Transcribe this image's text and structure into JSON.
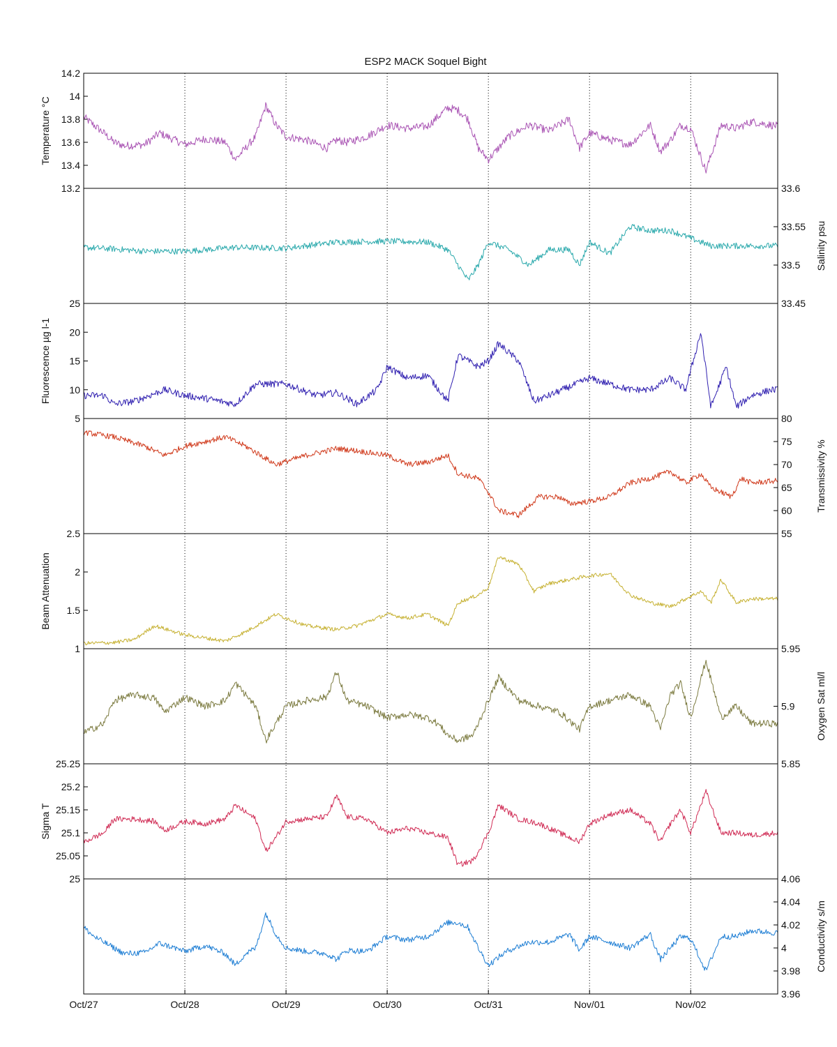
{
  "chart_data": {
    "type": "line",
    "title": "ESP2 MACK  Soquel Bight",
    "x_axis": {
      "unit": "days since Oct/27",
      "range": [
        0,
        6.86
      ],
      "tick_values": [
        0,
        1,
        2,
        3,
        4,
        5,
        6
      ],
      "tick_labels": [
        "Oct/27",
        "Oct/28",
        "Oct/29",
        "Oct/30",
        "Oct/31",
        "Nov/01",
        "Nov/02"
      ],
      "grid": "dotted vertical lines at each day"
    },
    "panels": [
      {
        "id": "temperature",
        "ylabel": "Temperature °C",
        "ylabel_side": "left",
        "color": "#aa55b4",
        "ylim": [
          13.2,
          14.2
        ],
        "ticks": [
          "13.4",
          "13.6",
          "13.8",
          "14"
        ],
        "top_label": "14.2",
        "bottom_label": "13.2",
        "x": [
          0,
          0.1,
          0.2,
          0.3,
          0.4,
          0.6,
          0.75,
          0.9,
          1.0,
          1.2,
          1.4,
          1.5,
          1.6,
          1.7,
          1.8,
          1.9,
          2.0,
          2.2,
          2.4,
          2.5,
          2.6,
          2.8,
          3.0,
          3.2,
          3.4,
          3.6,
          3.7,
          3.8,
          3.9,
          4.0,
          4.1,
          4.2,
          4.4,
          4.6,
          4.8,
          4.9,
          5.0,
          5.2,
          5.4,
          5.6,
          5.7,
          5.8,
          5.9,
          6.0,
          6.15,
          6.3,
          6.45,
          6.6,
          6.86
        ],
        "values": [
          13.82,
          13.75,
          13.68,
          13.6,
          13.57,
          13.58,
          13.68,
          13.62,
          13.58,
          13.63,
          13.6,
          13.45,
          13.55,
          13.65,
          13.92,
          13.75,
          13.65,
          13.62,
          13.55,
          13.62,
          13.6,
          13.65,
          13.75,
          13.72,
          13.74,
          13.9,
          13.88,
          13.8,
          13.55,
          13.45,
          13.55,
          13.65,
          13.75,
          13.7,
          13.8,
          13.55,
          13.68,
          13.62,
          13.58,
          13.75,
          13.52,
          13.62,
          13.75,
          13.72,
          13.35,
          13.75,
          13.72,
          13.78,
          13.74
        ],
        "noise": 0.035
      },
      {
        "id": "salinity",
        "ylabel": "Salinity psu",
        "ylabel_side": "right",
        "color": "#2aa9ac",
        "ylim": [
          33.45,
          33.6
        ],
        "ticks": [
          "33.5",
          "33.55"
        ],
        "top_label": "33.6",
        "bottom_label": "33.45",
        "x": [
          0,
          0.3,
          0.6,
          1.0,
          1.5,
          2.0,
          2.5,
          3.0,
          3.4,
          3.6,
          3.7,
          3.8,
          3.9,
          4.0,
          4.2,
          4.4,
          4.5,
          4.6,
          4.8,
          4.9,
          5.0,
          5.2,
          5.4,
          5.6,
          5.8,
          6.0,
          6.2,
          6.4,
          6.6,
          6.86
        ],
        "values": [
          33.523,
          33.521,
          33.518,
          33.518,
          33.523,
          33.522,
          33.53,
          33.531,
          33.53,
          33.52,
          33.5,
          33.48,
          33.5,
          33.53,
          33.52,
          33.5,
          33.51,
          33.52,
          33.52,
          33.5,
          33.53,
          33.515,
          33.55,
          33.545,
          33.545,
          33.535,
          33.525,
          33.525,
          33.525,
          33.525
        ],
        "noise": 0.004
      },
      {
        "id": "fluorescence",
        "ylabel": "Fluorescence µg l-1",
        "ylabel_side": "left",
        "color": "#3020b0",
        "ylim": [
          5,
          25
        ],
        "ticks": [
          "10",
          "15",
          "20"
        ],
        "top_label": "25",
        "bottom_label": "5",
        "x": [
          0,
          0.2,
          0.3,
          0.5,
          0.8,
          1.0,
          1.2,
          1.5,
          1.7,
          2.0,
          2.3,
          2.5,
          2.7,
          2.9,
          3.0,
          3.2,
          3.4,
          3.6,
          3.7,
          3.9,
          4.0,
          4.1,
          4.3,
          4.45,
          4.6,
          4.8,
          5.0,
          5.2,
          5.4,
          5.6,
          5.8,
          5.95,
          6.1,
          6.2,
          6.35,
          6.45,
          6.6,
          6.8,
          6.86
        ],
        "values": [
          9,
          9,
          7.5,
          8,
          10,
          9,
          8.5,
          7.5,
          11,
          11,
          9,
          9.5,
          7.5,
          10,
          14,
          12,
          12.5,
          8,
          16,
          14,
          15,
          18,
          15,
          8,
          9,
          10.5,
          12,
          11,
          10,
          10,
          12,
          10,
          20,
          7,
          14,
          7,
          9,
          10,
          10
        ],
        "noise": 0.6
      },
      {
        "id": "transmissivity",
        "ylabel": "Transmissivity %",
        "ylabel_side": "right",
        "color": "#d03a1c",
        "ylim": [
          55,
          80
        ],
        "ticks": [
          "60",
          "65",
          "70",
          "75"
        ],
        "top_label": "80",
        "bottom_label": "55",
        "x": [
          0,
          0.3,
          0.6,
          0.8,
          1.0,
          1.4,
          1.6,
          1.9,
          2.2,
          2.5,
          2.7,
          3.0,
          3.2,
          3.4,
          3.6,
          3.7,
          3.9,
          4.0,
          4.1,
          4.3,
          4.5,
          4.7,
          4.8,
          5.0,
          5.2,
          5.4,
          5.6,
          5.8,
          5.95,
          6.1,
          6.2,
          6.3,
          6.4,
          6.5,
          6.6,
          6.86
        ],
        "values": [
          77,
          76,
          74,
          72,
          74,
          76,
          74,
          70,
          72,
          73.5,
          73,
          72,
          70,
          70.5,
          72,
          68,
          67,
          64,
          60,
          59,
          63,
          63,
          61.5,
          62,
          63,
          66,
          67,
          68.5,
          66,
          68,
          65,
          64,
          63,
          67,
          66,
          66.5
        ],
        "noise": 0.6
      },
      {
        "id": "beam_attenuation",
        "ylabel": "Beam Attenuation",
        "ylabel_side": "left",
        "color": "#c6b132",
        "ylim": [
          1,
          2.5
        ],
        "ticks": [
          "1.5",
          "2"
        ],
        "top_label": "2.5",
        "bottom_label": "1",
        "x": [
          0,
          0.3,
          0.5,
          0.7,
          1.0,
          1.4,
          1.6,
          1.9,
          2.2,
          2.5,
          2.7,
          3.0,
          3.2,
          3.4,
          3.6,
          3.7,
          3.9,
          4.0,
          4.1,
          4.3,
          4.45,
          4.6,
          4.8,
          5.0,
          5.2,
          5.4,
          5.6,
          5.8,
          5.95,
          6.1,
          6.2,
          6.3,
          6.45,
          6.6,
          6.86
        ],
        "values": [
          1.07,
          1.08,
          1.12,
          1.3,
          1.18,
          1.1,
          1.22,
          1.45,
          1.3,
          1.25,
          1.3,
          1.45,
          1.4,
          1.45,
          1.3,
          1.6,
          1.7,
          1.8,
          2.2,
          2.1,
          1.75,
          1.85,
          1.9,
          1.95,
          1.98,
          1.7,
          1.6,
          1.55,
          1.65,
          1.75,
          1.6,
          1.9,
          1.6,
          1.65,
          1.65
        ],
        "noise": 0.025
      },
      {
        "id": "oxygen_sat",
        "ylabel": "Oxygen Sat ml/l",
        "ylabel_side": "right",
        "color": "#7c7b40",
        "ylim": [
          5.85,
          5.95
        ],
        "ticks": [
          "5.9"
        ],
        "top_label": "5.95",
        "bottom_label": "5.85",
        "x": [
          0,
          0.2,
          0.3,
          0.5,
          0.7,
          0.8,
          1.0,
          1.2,
          1.4,
          1.5,
          1.7,
          1.8,
          1.9,
          2.0,
          2.2,
          2.4,
          2.5,
          2.6,
          2.8,
          3.0,
          3.2,
          3.4,
          3.5,
          3.6,
          3.7,
          3.85,
          4.0,
          4.1,
          4.3,
          4.5,
          4.7,
          4.9,
          5.0,
          5.2,
          5.4,
          5.6,
          5.7,
          5.8,
          5.9,
          6.0,
          6.15,
          6.3,
          6.45,
          6.6,
          6.86
        ],
        "values": [
          5.877,
          5.885,
          5.905,
          5.91,
          5.907,
          5.895,
          5.908,
          5.9,
          5.905,
          5.92,
          5.9,
          5.87,
          5.885,
          5.9,
          5.905,
          5.908,
          5.93,
          5.905,
          5.9,
          5.89,
          5.893,
          5.89,
          5.885,
          5.875,
          5.87,
          5.875,
          5.905,
          5.925,
          5.905,
          5.9,
          5.895,
          5.88,
          5.9,
          5.905,
          5.91,
          5.9,
          5.88,
          5.91,
          5.92,
          5.89,
          5.94,
          5.89,
          5.9,
          5.885,
          5.885
        ],
        "noise": 0.003
      },
      {
        "id": "sigma_t",
        "ylabel": "Sigma T",
        "ylabel_side": "left",
        "color": "#d02c55",
        "ylim": [
          25,
          25.25
        ],
        "ticks": [
          "25.05",
          "25.1",
          "25.15",
          "25.2"
        ],
        "top_label": "25.25",
        "bottom_label": "25",
        "x": [
          0,
          0.2,
          0.3,
          0.5,
          0.7,
          0.8,
          1.0,
          1.2,
          1.4,
          1.5,
          1.7,
          1.8,
          1.9,
          2.0,
          2.2,
          2.4,
          2.5,
          2.6,
          2.8,
          3.0,
          3.2,
          3.4,
          3.6,
          3.7,
          3.85,
          4.0,
          4.1,
          4.3,
          4.5,
          4.7,
          4.9,
          5.0,
          5.2,
          5.4,
          5.6,
          5.7,
          5.8,
          5.9,
          6.0,
          6.15,
          6.3,
          6.45,
          6.6,
          6.86
        ],
        "values": [
          25.08,
          25.1,
          25.13,
          25.13,
          25.125,
          25.105,
          25.125,
          25.12,
          25.13,
          25.16,
          25.13,
          25.06,
          25.09,
          25.125,
          25.13,
          25.135,
          25.18,
          25.135,
          25.13,
          25.1,
          25.11,
          25.1,
          25.09,
          25.03,
          25.04,
          25.1,
          25.16,
          25.13,
          25.12,
          25.1,
          25.08,
          25.12,
          25.14,
          25.15,
          25.12,
          25.08,
          25.12,
          25.15,
          25.1,
          25.19,
          25.1,
          25.1,
          25.095,
          25.1
        ],
        "noise": 0.006
      },
      {
        "id": "conductivity",
        "ylabel": "Conductivity s/m",
        "ylabel_side": "right",
        "color": "#1e7ed4",
        "ylim": [
          3.96,
          4.06
        ],
        "ticks": [
          "3.98",
          "4",
          "4.02",
          "4.04"
        ],
        "top_label": "4.06",
        "bottom_label": "3.96",
        "x": [
          0,
          0.1,
          0.3,
          0.4,
          0.6,
          0.75,
          0.9,
          1.0,
          1.2,
          1.4,
          1.5,
          1.6,
          1.7,
          1.8,
          1.9,
          2.0,
          2.2,
          2.4,
          2.5,
          2.6,
          2.8,
          3.0,
          3.2,
          3.4,
          3.6,
          3.7,
          3.8,
          3.9,
          4.0,
          4.1,
          4.2,
          4.4,
          4.6,
          4.8,
          4.9,
          5.0,
          5.2,
          5.4,
          5.6,
          5.7,
          5.8,
          5.9,
          6.0,
          6.15,
          6.3,
          6.45,
          6.6,
          6.86
        ],
        "values": [
          4.018,
          4.01,
          4.0,
          3.995,
          3.996,
          4.004,
          4.0,
          3.997,
          4.002,
          3.995,
          3.985,
          3.995,
          4.0,
          4.03,
          4.012,
          4.0,
          3.997,
          3.995,
          3.99,
          3.998,
          3.997,
          4.01,
          4.007,
          4.01,
          4.022,
          4.022,
          4.018,
          4.0,
          3.985,
          3.992,
          3.998,
          4.005,
          4.005,
          4.012,
          3.998,
          4.01,
          4.005,
          4.0,
          4.012,
          3.99,
          4.0,
          4.01,
          4.008,
          3.98,
          4.01,
          4.01,
          4.015,
          4.013
        ],
        "noise": 0.0025
      }
    ]
  }
}
